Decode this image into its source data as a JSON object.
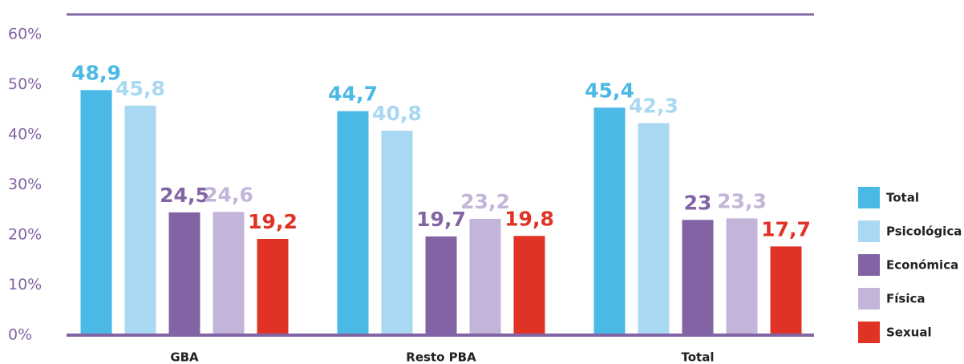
{
  "chart_data": {
    "type": "bar",
    "categories": [
      "GBA",
      "Resto PBA",
      "Total"
    ],
    "series": [
      {
        "name": "Total",
        "color": "#4bb9e6",
        "values": [
          48.9,
          44.7,
          45.4
        ],
        "value_labels": [
          "48,9",
          "44,7",
          "45,4"
        ]
      },
      {
        "name": "Psicológica",
        "color": "#a9d8f2",
        "values": [
          45.8,
          40.8,
          42.3
        ],
        "value_labels": [
          "45,8",
          "40,8",
          "42,3"
        ]
      },
      {
        "name": "Económica",
        "color": "#8264a5",
        "values": [
          24.5,
          19.7,
          23
        ],
        "value_labels": [
          "24,5",
          "19,7",
          "23"
        ]
      },
      {
        "name": "Física",
        "color": "#c3b5d9",
        "values": [
          24.6,
          23.2,
          23.3
        ],
        "value_labels": [
          "24,6",
          "23,2",
          "23,3"
        ]
      },
      {
        "name": "Sexual",
        "color": "#e03325",
        "values": [
          19.2,
          19.8,
          17.7
        ],
        "value_labels": [
          "19,2",
          "19,8",
          "17,7"
        ]
      }
    ],
    "ylim": [
      0,
      60
    ],
    "yticks": [
      {
        "value": 0,
        "label": "0%"
      },
      {
        "value": 10,
        "label": "10%"
      },
      {
        "value": 20,
        "label": "20%"
      },
      {
        "value": 30,
        "label": "30%"
      },
      {
        "value": 40,
        "label": "40%"
      },
      {
        "value": 50,
        "label": "50%"
      },
      {
        "value": 60,
        "label": "60%"
      }
    ],
    "grid": false,
    "legend": "right"
  }
}
